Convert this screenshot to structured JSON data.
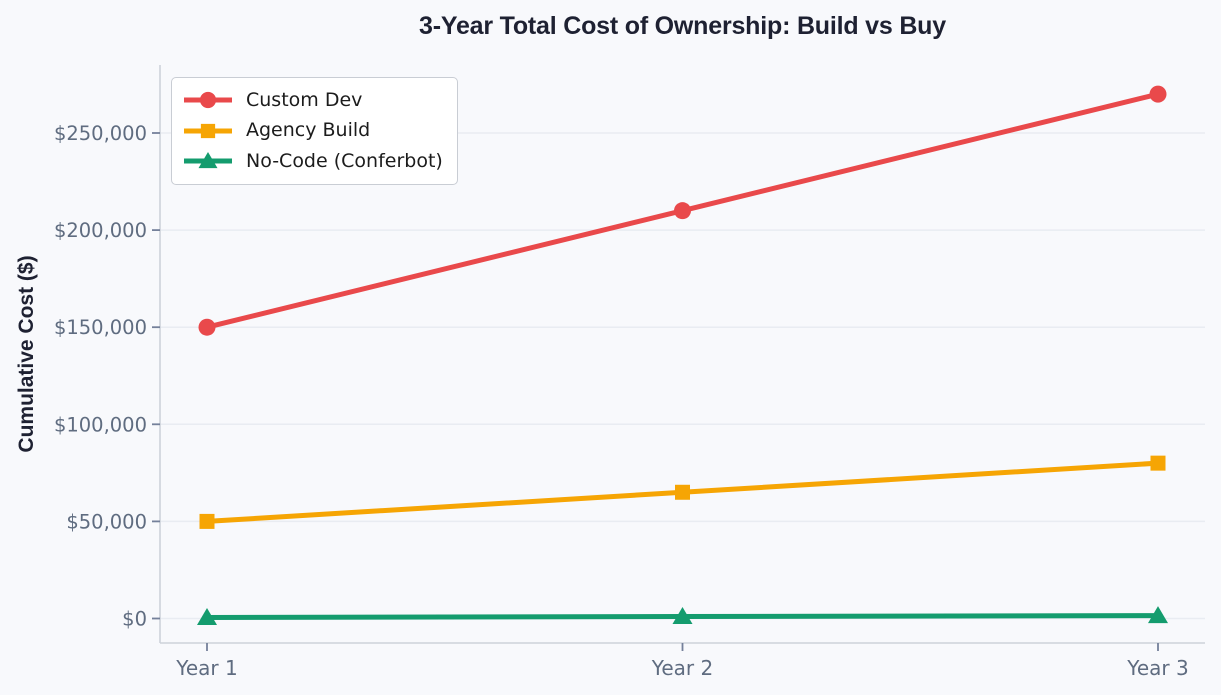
{
  "chart_data": {
    "type": "line",
    "title": "3-Year Total Cost of Ownership: Build vs Buy",
    "xlabel": "",
    "ylabel": "Cumulative Cost ($)",
    "categories": [
      "Year 1",
      "Year 2",
      "Year 3"
    ],
    "series": [
      {
        "name": "Custom Dev",
        "color": "#e9494b",
        "marker": "circle",
        "values": [
          150000,
          210000,
          270000
        ]
      },
      {
        "name": "Agency Build",
        "color": "#f6a504",
        "marker": "square",
        "values": [
          50000,
          65000,
          80000
        ]
      },
      {
        "name": "No-Code (Conferbot)",
        "color": "#149c6e",
        "marker": "triangle",
        "values": [
          500,
          1000,
          1500
        ]
      }
    ],
    "y_ticks": [
      0,
      50000,
      100000,
      150000,
      200000,
      250000
    ],
    "y_tick_labels": [
      "$0",
      "$50,000",
      "$100,000",
      "$150,000",
      "$200,000",
      "$250,000"
    ],
    "ylim": [
      -13500,
      283500
    ],
    "grid": "horizontal",
    "legend_position": "upper-left"
  },
  "colors": {
    "background": "#f8f9fc",
    "grid": "#e9ecf2",
    "spine": "#cdd2da",
    "tick_mark": "#74809a",
    "tick_label": "#5f6c80",
    "title_text": "#1e2132",
    "legend_bg": "#ffffff",
    "legend_border": "#c9cdd4",
    "legend_text": "#1c1c1c"
  }
}
